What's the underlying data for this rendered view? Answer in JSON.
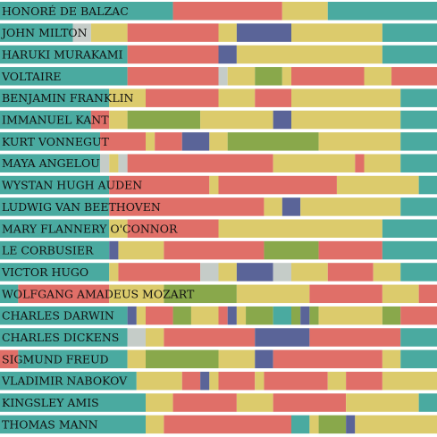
{
  "chart_data": {
    "type": "bar",
    "stacked": true,
    "title": "",
    "xlabel": "",
    "ylabel": "",
    "x_unit": "hours of day",
    "xlim": [
      0,
      24
    ],
    "grid": false,
    "legend": "none",
    "colors": {
      "teal": "#4aaaa0",
      "red": "#e06f68",
      "yellow": "#dccb6c",
      "green": "#89a84b",
      "navy": "#5a6498",
      "grey": "#c5ccc8"
    },
    "rows": [
      {
        "name": "HONORÉ DE BALZAC",
        "segments": [
          [
            "teal",
            0,
            8
          ],
          [
            "teal",
            8,
            9.5
          ],
          [
            "red",
            9.5,
            15.5
          ],
          [
            "yellow",
            15.5,
            18
          ],
          [
            "teal",
            18,
            24
          ]
        ]
      },
      {
        "name": "JOHN MILTON",
        "segments": [
          [
            "teal",
            0,
            4
          ],
          [
            "grey",
            4,
            5
          ],
          [
            "yellow",
            5,
            7
          ],
          [
            "red",
            7,
            12
          ],
          [
            "yellow",
            12,
            13
          ],
          [
            "navy",
            13,
            16
          ],
          [
            "yellow",
            16,
            21
          ],
          [
            "teal",
            21,
            24
          ]
        ]
      },
      {
        "name": "HARUKI MURAKAMI",
        "segments": [
          [
            "teal",
            0,
            7
          ],
          [
            "red",
            7,
            12
          ],
          [
            "navy",
            12,
            13
          ],
          [
            "yellow",
            13,
            21
          ],
          [
            "teal",
            21,
            24
          ]
        ]
      },
      {
        "name": "VOLTAIRE",
        "segments": [
          [
            "teal",
            0,
            7
          ],
          [
            "red",
            7,
            12
          ],
          [
            "grey",
            12,
            12.5
          ],
          [
            "yellow",
            12.5,
            14
          ],
          [
            "green",
            14,
            15.5
          ],
          [
            "yellow",
            15.5,
            16
          ],
          [
            "red",
            16,
            20
          ],
          [
            "yellow",
            20,
            21.5
          ],
          [
            "red",
            21.5,
            24
          ]
        ]
      },
      {
        "name": "BENJAMIN FRANKLIN",
        "segments": [
          [
            "teal",
            0,
            6
          ],
          [
            "yellow",
            6,
            8
          ],
          [
            "red",
            8,
            12
          ],
          [
            "yellow",
            12,
            14
          ],
          [
            "red",
            14,
            16
          ],
          [
            "yellow",
            16,
            22
          ],
          [
            "teal",
            22,
            24
          ]
        ]
      },
      {
        "name": "IMMANUEL KANT",
        "segments": [
          [
            "teal",
            0,
            5
          ],
          [
            "red",
            5,
            6
          ],
          [
            "yellow",
            6,
            7
          ],
          [
            "green",
            7,
            11
          ],
          [
            "yellow",
            11,
            15
          ],
          [
            "navy",
            15,
            16
          ],
          [
            "yellow",
            16,
            22
          ],
          [
            "teal",
            22,
            24
          ]
        ]
      },
      {
        "name": "KURT VONNEGUT",
        "segments": [
          [
            "teal",
            0,
            5.5
          ],
          [
            "red",
            5.5,
            8
          ],
          [
            "yellow",
            8,
            8.5
          ],
          [
            "red",
            8.5,
            10
          ],
          [
            "navy",
            10,
            11.5
          ],
          [
            "yellow",
            11.5,
            12.5
          ],
          [
            "green",
            12.5,
            17.5
          ],
          [
            "yellow",
            17.5,
            22
          ],
          [
            "teal",
            22,
            24
          ]
        ]
      },
      {
        "name": "MAYA ANGELOU",
        "segments": [
          [
            "teal",
            0,
            5.5
          ],
          [
            "grey",
            5.5,
            6
          ],
          [
            "yellow",
            6,
            6.5
          ],
          [
            "grey",
            6.5,
            7
          ],
          [
            "red",
            7,
            15
          ],
          [
            "yellow",
            15,
            19.5
          ],
          [
            "red",
            19.5,
            20
          ],
          [
            "yellow",
            20,
            22
          ],
          [
            "teal",
            22,
            24
          ]
        ]
      },
      {
        "name": "WYSTAN HUGH AUDEN",
        "segments": [
          [
            "teal",
            0,
            6
          ],
          [
            "red",
            6,
            11.5
          ],
          [
            "yellow",
            11.5,
            12
          ],
          [
            "red",
            12,
            18.5
          ],
          [
            "yellow",
            18.5,
            23
          ],
          [
            "teal",
            23,
            24
          ]
        ]
      },
      {
        "name": "LUDWIG VAN BEETHOVEN",
        "segments": [
          [
            "teal",
            0,
            6
          ],
          [
            "red",
            6,
            14.5
          ],
          [
            "yellow",
            14.5,
            15.5
          ],
          [
            "navy",
            15.5,
            16.5
          ],
          [
            "yellow",
            16.5,
            22
          ],
          [
            "teal",
            22,
            24
          ]
        ]
      },
      {
        "name": "MARY FLANNERY O'CONNOR",
        "segments": [
          [
            "teal",
            0,
            6
          ],
          [
            "yellow",
            6,
            7
          ],
          [
            "red",
            7,
            12
          ],
          [
            "yellow",
            12,
            21
          ],
          [
            "teal",
            21,
            24
          ]
        ]
      },
      {
        "name": "LE CORBUSIER",
        "segments": [
          [
            "teal",
            0,
            6
          ],
          [
            "navy",
            6,
            6.5
          ],
          [
            "yellow",
            6.5,
            9
          ],
          [
            "red",
            9,
            14.5
          ],
          [
            "green",
            14.5,
            17.5
          ],
          [
            "red",
            17.5,
            21
          ],
          [
            "teal",
            21,
            24
          ]
        ]
      },
      {
        "name": "VICTOR HUGO",
        "segments": [
          [
            "teal",
            0,
            6
          ],
          [
            "yellow",
            6,
            6.5
          ],
          [
            "red",
            6.5,
            11
          ],
          [
            "grey",
            11,
            12
          ],
          [
            "yellow",
            12,
            13
          ],
          [
            "navy",
            13,
            15
          ],
          [
            "grey",
            15,
            16
          ],
          [
            "yellow",
            16,
            18
          ],
          [
            "red",
            18,
            20.5
          ],
          [
            "yellow",
            20.5,
            22
          ],
          [
            "teal",
            22,
            24
          ]
        ]
      },
      {
        "name": "WOLFGANG AMADEUS MOZART",
        "segments": [
          [
            "teal",
            0,
            1
          ],
          [
            "red",
            1,
            6
          ],
          [
            "yellow",
            6,
            9
          ],
          [
            "green",
            9,
            13
          ],
          [
            "yellow",
            13,
            17
          ],
          [
            "red",
            17,
            21
          ],
          [
            "yellow",
            21,
            23
          ],
          [
            "red",
            23,
            24
          ]
        ]
      },
      {
        "name": "CHARLES DARWIN",
        "segments": [
          [
            "teal",
            0,
            7
          ],
          [
            "navy",
            7,
            7.5
          ],
          [
            "yellow",
            7.5,
            8
          ],
          [
            "red",
            8,
            9.5
          ],
          [
            "green",
            9.5,
            10.5
          ],
          [
            "yellow",
            10.5,
            12
          ],
          [
            "red",
            12,
            12.5
          ],
          [
            "navy",
            12.5,
            13
          ],
          [
            "yellow",
            13,
            13.5
          ],
          [
            "green",
            13.5,
            15
          ],
          [
            "teal",
            15,
            16
          ],
          [
            "green",
            16,
            16.5
          ],
          [
            "navy",
            16.5,
            17
          ],
          [
            "green",
            17,
            17.5
          ],
          [
            "yellow",
            17.5,
            21
          ],
          [
            "green",
            21,
            22
          ],
          [
            "red",
            22,
            24
          ]
        ]
      },
      {
        "name": "CHARLES DICKENS",
        "segments": [
          [
            "teal",
            0,
            7
          ],
          [
            "grey",
            7,
            8
          ],
          [
            "yellow",
            8,
            9
          ],
          [
            "red",
            9,
            14
          ],
          [
            "navy",
            14,
            17
          ],
          [
            "red",
            17,
            22
          ],
          [
            "teal",
            22,
            24
          ]
        ]
      },
      {
        "name": "SIGMUND FREUD",
        "segments": [
          [
            "red",
            0,
            1
          ],
          [
            "teal",
            1,
            7
          ],
          [
            "yellow",
            7,
            8
          ],
          [
            "green",
            8,
            12
          ],
          [
            "yellow",
            12,
            14
          ],
          [
            "navy",
            14,
            15
          ],
          [
            "red",
            15,
            21
          ],
          [
            "yellow",
            21,
            22
          ],
          [
            "teal",
            22,
            24
          ]
        ]
      },
      {
        "name": "VLADIMIR NABOKOV",
        "segments": [
          [
            "teal",
            0,
            7.5
          ],
          [
            "yellow",
            7.5,
            10
          ],
          [
            "red",
            10,
            11
          ],
          [
            "navy",
            11,
            11.5
          ],
          [
            "yellow",
            11.5,
            12
          ],
          [
            "red",
            12,
            14
          ],
          [
            "yellow",
            14,
            14.5
          ],
          [
            "red",
            14.5,
            18
          ],
          [
            "yellow",
            18,
            19
          ],
          [
            "red",
            19,
            21
          ],
          [
            "yellow",
            21,
            24
          ]
        ]
      },
      {
        "name": "KINGSLEY AMIS",
        "segments": [
          [
            "teal",
            0,
            8
          ],
          [
            "yellow",
            8,
            9.5
          ],
          [
            "red",
            9.5,
            13
          ],
          [
            "yellow",
            13,
            15
          ],
          [
            "red",
            15,
            19
          ],
          [
            "yellow",
            19,
            23
          ],
          [
            "teal",
            23,
            24
          ]
        ]
      },
      {
        "name": "THOMAS MANN",
        "segments": [
          [
            "teal",
            0,
            8
          ],
          [
            "yellow",
            8,
            9
          ],
          [
            "red",
            9,
            16
          ],
          [
            "teal",
            16,
            17
          ],
          [
            "yellow",
            17,
            17.5
          ],
          [
            "green",
            17.5,
            19
          ],
          [
            "navy",
            19,
            19.5
          ],
          [
            "yellow",
            19.5,
            24
          ]
        ]
      }
    ]
  }
}
